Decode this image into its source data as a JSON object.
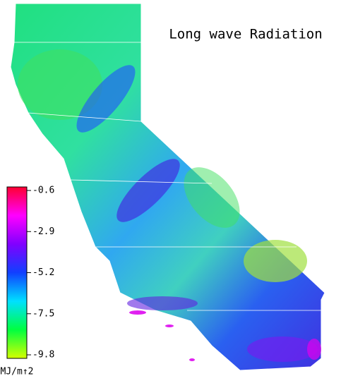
{
  "title": "Long wave Radiation",
  "colorbar": {
    "lim": [
      -9.8,
      -0.6
    ],
    "ticks": [
      -0.6,
      -2.9,
      -5.2,
      -7.5,
      -9.8
    ],
    "unit": "MJ/m↑2",
    "colors": [
      "#d4ff00",
      "#00ff40",
      "#00e0ff",
      "#1040ff",
      "#8000ff",
      "#ff00ff",
      "#ff0030"
    ]
  }
}
